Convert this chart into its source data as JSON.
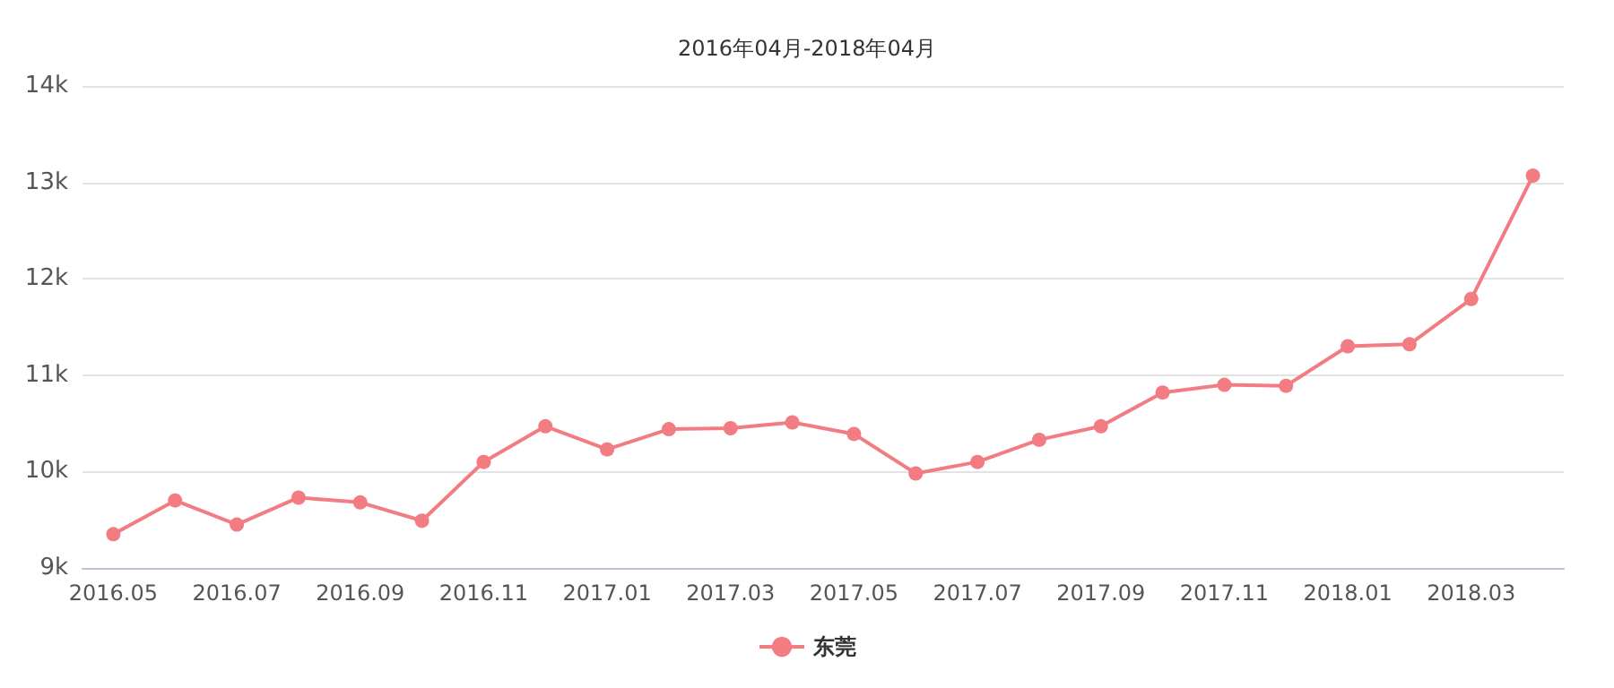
{
  "chart_data": {
    "type": "line",
    "title": "2016年04月-2018年04月",
    "categories": [
      "2016.05",
      null,
      "2016.07",
      null,
      "2016.09",
      null,
      "2016.11",
      null,
      "2017.01",
      null,
      "2017.03",
      null,
      "2017.05",
      null,
      "2017.07",
      null,
      "2017.09",
      null,
      "2017.11",
      null,
      "2018.01",
      null,
      "2018.03",
      null
    ],
    "series": [
      {
        "name": "东莞",
        "color": "#f27c82",
        "values": [
          9350,
          9700,
          9450,
          9730,
          9680,
          9490,
          10100,
          10470,
          10230,
          10440,
          10450,
          10510,
          10390,
          9980,
          10100,
          10330,
          10470,
          10820,
          10900,
          10890,
          11300,
          11320,
          11790,
          13070
        ]
      }
    ],
    "ylim": [
      9000,
      14000
    ],
    "yticks": [
      {
        "value": 9000,
        "label": "9k"
      },
      {
        "value": 10000,
        "label": "10k"
      },
      {
        "value": 11000,
        "label": "11k"
      },
      {
        "value": 12000,
        "label": "12k"
      },
      {
        "value": 13000,
        "label": "13k"
      },
      {
        "value": 14000,
        "label": "14k"
      }
    ],
    "grid": "y",
    "legend": "bottom",
    "marker": "circle",
    "line_style": "solid"
  }
}
